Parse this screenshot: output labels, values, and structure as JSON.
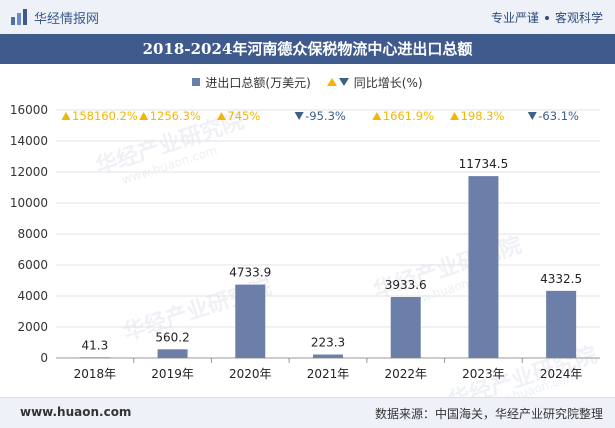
{
  "header": {
    "brand_name": "华经情报网",
    "tagline_left": "专业严谨",
    "tagline_right": "客观科学"
  },
  "watermark": {
    "text": "华经产业研究院",
    "url": "www.huaon.com"
  },
  "footer": {
    "url": "www.huaon.com",
    "source": "数据来源：中国海关，华经产业研究院整理"
  },
  "colors": {
    "bar": "#6b7fa8",
    "up": "#f2b705",
    "down": "#3e5f86",
    "title_bar": "#3f5a8c"
  },
  "chart_data": {
    "type": "bar",
    "title": "2018-2024年河南德众保税物流中心进出口总额",
    "categories": [
      "2018年",
      "2019年",
      "2020年",
      "2021年",
      "2022年",
      "2023年",
      "2024年"
    ],
    "series": [
      {
        "name": "进出口总额(万美元)",
        "values": [
          41.3,
          560.2,
          4733.9,
          223.3,
          3933.6,
          11734.5,
          4332.5
        ],
        "value_labels": [
          "41.3",
          "560.2",
          "4733.9",
          "223.3",
          "3933.6",
          "11734.5",
          "4332.5"
        ]
      },
      {
        "name": "同比增长(%)",
        "values": [
          158160.2,
          1256.3,
          745,
          -95.3,
          1661.9,
          198.3,
          -63.1
        ],
        "value_labels": [
          "158160.2%",
          "1256.3%",
          "745%",
          "-95.3%",
          "1661.9%",
          "198.3%",
          "-63.1%"
        ]
      }
    ],
    "y_ticks": [
      "0",
      "2000",
      "4000",
      "6000",
      "8000",
      "10000",
      "12000",
      "14000",
      "16000"
    ],
    "ylim": [
      0,
      16000
    ],
    "grid": true,
    "legend_position": "top-center"
  }
}
